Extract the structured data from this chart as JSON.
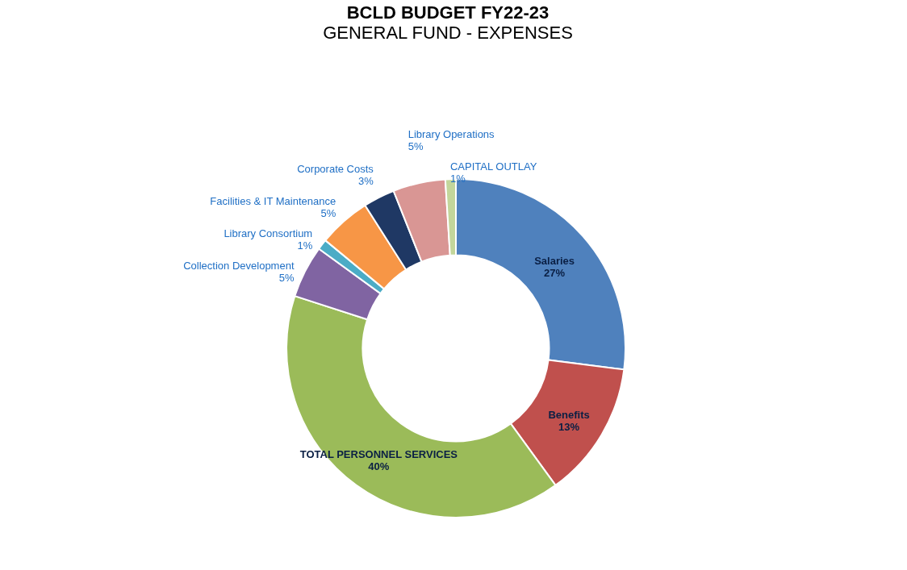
{
  "chart_data": {
    "type": "donut",
    "title": "BCLD BUDGET FY22-23",
    "subtitle": "GENERAL FUND - EXPENSES",
    "categories": [
      "Salaries",
      "Benefits",
      "TOTAL PERSONNEL SERVICES",
      "Collection Development",
      "Library Consortium",
      "Facilities & IT Maintenance",
      "Corporate Costs",
      "Library Operations",
      "CAPITAL OUTLAY"
    ],
    "values": [
      27,
      13,
      40,
      5,
      1,
      5,
      3,
      5,
      1
    ],
    "value_labels": [
      "27%",
      "13%",
      "40%",
      "5%",
      "1%",
      "5%",
      "3%",
      "5%",
      "1%"
    ],
    "colors": [
      "#4f81bd",
      "#c0504d",
      "#9bbb59",
      "#8064a2",
      "#4bacc6",
      "#f79646",
      "#1f3864",
      "#d99694",
      "#c3d69b"
    ],
    "legend": false
  }
}
